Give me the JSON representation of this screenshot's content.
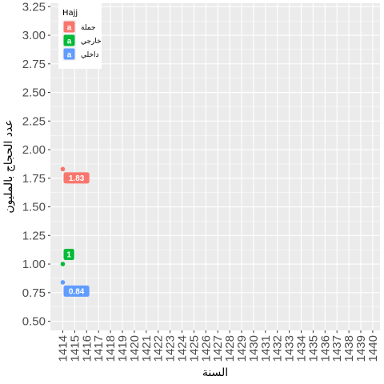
{
  "chart_data": {
    "type": "scatter",
    "title": "",
    "xlabel": "السنة",
    "ylabel": "عدد الحجاج بالمليون",
    "x_categories": [
      "1414",
      "1415",
      "1416",
      "1417",
      "1418",
      "1419",
      "1420",
      "1421",
      "1422",
      "1423",
      "1424",
      "1425",
      "1426",
      "1427",
      "1428",
      "1429",
      "1430",
      "1431",
      "1432",
      "1433",
      "1434",
      "1435",
      "1436",
      "1437",
      "1438",
      "1439",
      "1440"
    ],
    "y_ticks": [
      "0.50",
      "0.75",
      "1.00",
      "1.25",
      "1.50",
      "1.75",
      "2.00",
      "2.25",
      "2.50",
      "2.75",
      "3.00",
      "3.25"
    ],
    "ylim": [
      0.42,
      3.28
    ],
    "grid": true,
    "legend_position": "top-left",
    "legend_title": "Hajj",
    "legend_key_glyph": "a",
    "series": [
      {
        "name": "جملة",
        "color": "#F8766D",
        "points": [
          {
            "x": "1414",
            "y": 1.83,
            "label": "1.83"
          }
        ]
      },
      {
        "name": "خارجي",
        "color": "#00BA38",
        "points": [
          {
            "x": "1414",
            "y": 1.0,
            "label": "1"
          }
        ]
      },
      {
        "name": "داخلي",
        "color": "#619CFF",
        "points": [
          {
            "x": "1414",
            "y": 0.84,
            "label": "0.84"
          }
        ]
      }
    ]
  }
}
